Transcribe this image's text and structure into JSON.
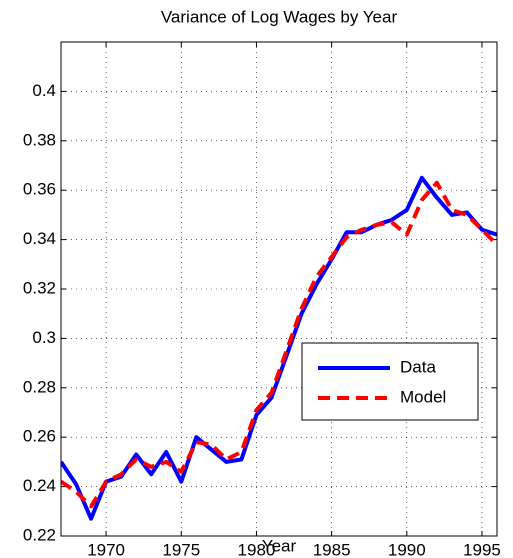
{
  "chart_data": {
    "type": "line",
    "title": "Variance of Log Wages by Year",
    "x_label": "Year",
    "x": [
      1967,
      1968,
      1969,
      1970,
      1971,
      1972,
      1973,
      1974,
      1975,
      1976,
      1977,
      1978,
      1979,
      1980,
      1981,
      1982,
      1983,
      1984,
      1985,
      1986,
      1987,
      1988,
      1989,
      1990,
      1991,
      1992,
      1993,
      1994,
      1995,
      1996
    ],
    "series": [
      {
        "name": "Data",
        "color": "#0000ff",
        "dash": "solid",
        "values": [
          0.25,
          0.241,
          0.227,
          0.242,
          0.244,
          0.253,
          0.245,
          0.254,
          0.242,
          0.26,
          0.255,
          0.25,
          0.251,
          0.269,
          0.276,
          0.293,
          0.31,
          0.322,
          0.332,
          0.343,
          0.343,
          0.346,
          0.348,
          0.352,
          0.365,
          0.357,
          0.35,
          0.351,
          0.344,
          0.342
        ]
      },
      {
        "name": "Model",
        "color": "#ff0000",
        "dash": "dashed",
        "values": [
          0.242,
          0.238,
          0.232,
          0.242,
          0.245,
          0.251,
          0.248,
          0.25,
          0.246,
          0.258,
          0.257,
          0.251,
          0.254,
          0.271,
          0.278,
          0.295,
          0.312,
          0.325,
          0.333,
          0.341,
          0.344,
          0.346,
          0.347,
          0.342,
          0.356,
          0.363,
          0.352,
          0.35,
          0.344,
          0.338
        ]
      }
    ],
    "xlim": [
      1967,
      1996
    ],
    "xticks": [
      1970,
      1975,
      1980,
      1985,
      1990,
      1995
    ],
    "ylim": [
      0.22,
      0.42
    ],
    "yticks": [
      0.22,
      0.24,
      0.26,
      0.28,
      0.3,
      0.32,
      0.34,
      0.36,
      0.38,
      0.4
    ],
    "grid": true,
    "legend": "lower right"
  }
}
